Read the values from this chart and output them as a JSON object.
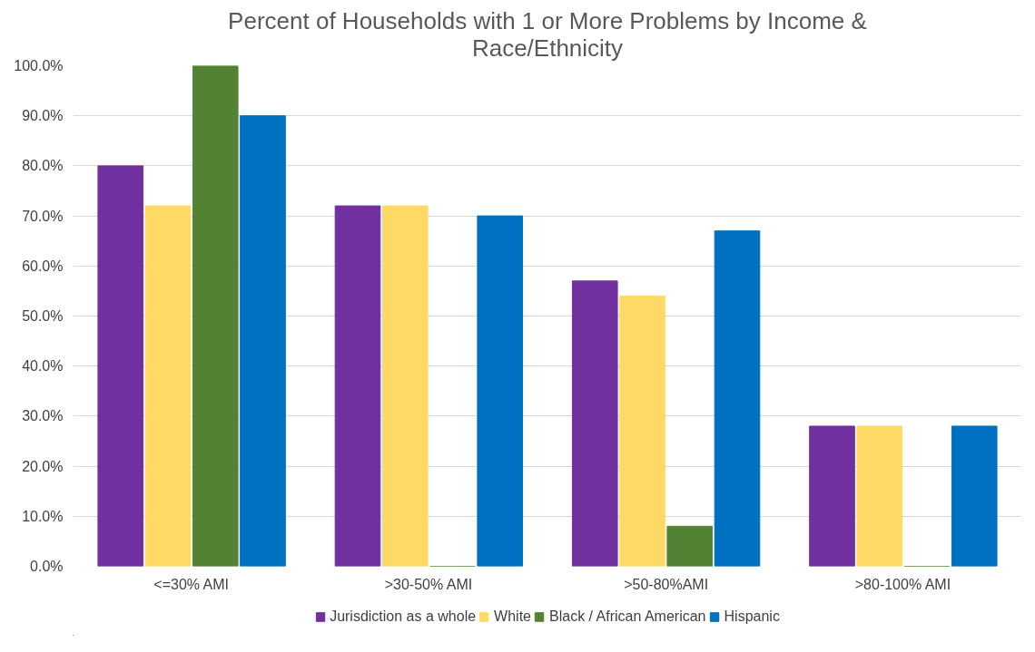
{
  "chart_data": {
    "type": "bar",
    "title": "Percent of Households with 1 or More Problems by Income & Race/Ethnicity",
    "categories": [
      "<=30% AMI",
      ">30-50% AMI",
      ">50-80%AMI",
      ">80-100% AMI"
    ],
    "series": [
      {
        "name": "Jurisdiction as a whole",
        "color": "#7030a0",
        "values": [
          80,
          72,
          57,
          28
        ]
      },
      {
        "name": "White",
        "color": "#ffd966",
        "values": [
          72,
          72,
          54,
          28
        ]
      },
      {
        "name": "Black / African American",
        "color": "#548235",
        "values": [
          100,
          0,
          8,
          0
        ]
      },
      {
        "name": "Hispanic",
        "color": "#0070c0",
        "values": [
          90,
          70,
          67,
          28
        ]
      }
    ],
    "ylim": [
      0,
      100
    ],
    "yticks": [
      {
        "value": 0,
        "label": "0.0%"
      },
      {
        "value": 10,
        "label": "10.0%"
      },
      {
        "value": 20,
        "label": "20.0%"
      },
      {
        "value": 30,
        "label": "30.0%"
      },
      {
        "value": 40,
        "label": "40.0%"
      },
      {
        "value": 50,
        "label": "50.0%"
      },
      {
        "value": 60,
        "label": "60.0%"
      },
      {
        "value": 70,
        "label": "70.0%"
      },
      {
        "value": 80,
        "label": "80.0%"
      },
      {
        "value": 90,
        "label": "90.0%"
      },
      {
        "value": 100,
        "label": "100.0%"
      }
    ],
    "grid": "y",
    "legend": "bottom"
  }
}
